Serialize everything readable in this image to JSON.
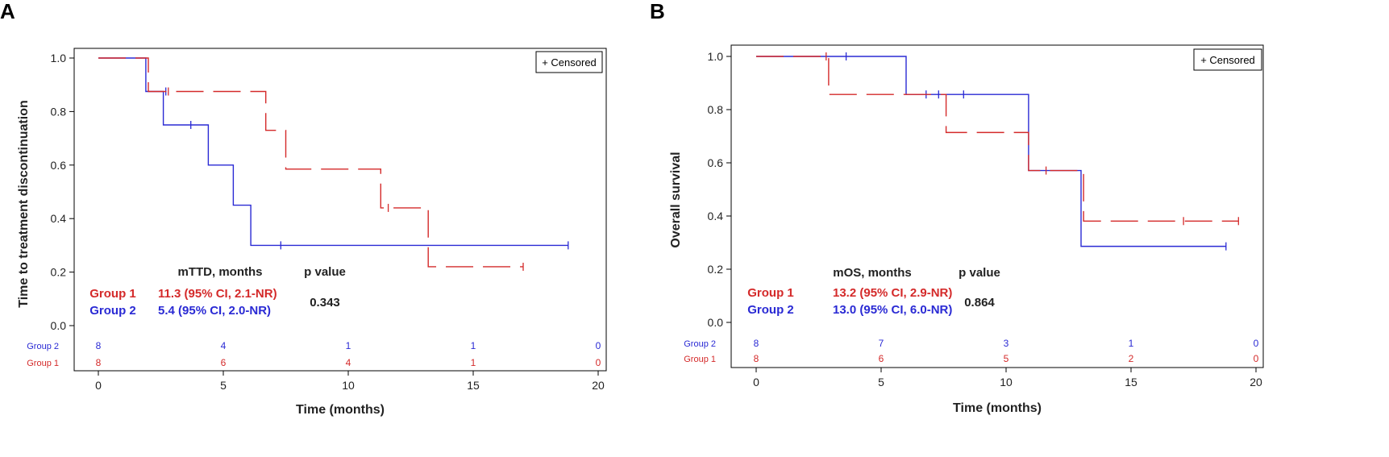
{
  "colors": {
    "group1": "#d42a2a",
    "group2": "#2a2ad4",
    "axis": "#000000",
    "text": "#222222"
  },
  "panels": [
    {
      "letter": "A"
    },
    {
      "letter": "B"
    }
  ],
  "chart_data": [
    {
      "type": "line",
      "subtype": "kaplan-meier",
      "title": "",
      "xlabel": "Time (months)",
      "ylabel": "Time to treatment discontinuation",
      "xlim": [
        0,
        20
      ],
      "ylim": [
        0,
        1.0
      ],
      "x_ticks": [
        0,
        5,
        10,
        15,
        20
      ],
      "y_ticks": [
        0.0,
        0.2,
        0.4,
        0.6,
        0.8,
        1.0
      ],
      "y_tick_labels": [
        "0.0",
        "0.2",
        "0.4",
        "0.6",
        "0.8",
        "1.0"
      ],
      "legend": {
        "text": "+ Censored",
        "position": "top-right"
      },
      "series": [
        {
          "name": "Group 1",
          "dash": "dashed",
          "steps": [
            [
              0,
              1.0
            ],
            [
              2.0,
              0.875
            ],
            [
              6.7,
              0.73
            ],
            [
              7.5,
              0.585
            ],
            [
              11.3,
              0.44
            ],
            [
              13.2,
              0.22
            ],
            [
              17.0,
              0.22
            ]
          ],
          "censored": [
            [
              2.8,
              0.875
            ],
            [
              11.6,
              0.44
            ],
            [
              17.0,
              0.22
            ]
          ]
        },
        {
          "name": "Group 2",
          "dash": "solid",
          "steps": [
            [
              0,
              1.0
            ],
            [
              1.9,
              0.875
            ],
            [
              2.6,
              0.75
            ],
            [
              4.4,
              0.6
            ],
            [
              5.4,
              0.45
            ],
            [
              6.1,
              0.3
            ],
            [
              18.8,
              0.3
            ]
          ],
          "censored": [
            [
              2.7,
              0.875
            ],
            [
              3.7,
              0.75
            ],
            [
              7.3,
              0.3
            ],
            [
              18.8,
              0.3
            ]
          ]
        }
      ],
      "annotation": {
        "header_metric": "mTTD, months",
        "header_p": "p value",
        "rows": [
          {
            "group": "Group 1",
            "value": "11.3 (95% CI, 2.1-NR)"
          },
          {
            "group": "Group 2",
            "value": "5.4 (95% CI, 2.0-NR)"
          }
        ],
        "p_value": "0.343"
      },
      "risk_table": {
        "rows": [
          {
            "label": "Group 2",
            "counts": [
              "8",
              "4",
              "1",
              "1",
              "0"
            ]
          },
          {
            "label": "Group 1",
            "counts": [
              "8",
              "6",
              "4",
              "1",
              "0"
            ]
          }
        ]
      }
    },
    {
      "type": "line",
      "subtype": "kaplan-meier",
      "title": "",
      "xlabel": "Time (months)",
      "ylabel": "Overall survival",
      "xlim": [
        0,
        20
      ],
      "ylim": [
        0,
        1.0
      ],
      "x_ticks": [
        0,
        5,
        10,
        15,
        20
      ],
      "y_ticks": [
        0.0,
        0.2,
        0.4,
        0.6,
        0.8,
        1.0
      ],
      "y_tick_labels": [
        "0.0",
        "0.2",
        "0.4",
        "0.6",
        "0.8",
        "1.0"
      ],
      "legend": {
        "text": "+ Censored",
        "position": "top-right"
      },
      "series": [
        {
          "name": "Group 1",
          "dash": "dashed",
          "steps": [
            [
              0,
              1.0
            ],
            [
              2.9,
              0.857
            ],
            [
              7.6,
              0.714
            ],
            [
              10.9,
              0.571
            ],
            [
              13.1,
              0.381
            ],
            [
              19.3,
              0.381
            ]
          ],
          "censored": [
            [
              2.8,
              1.0
            ],
            [
              11.6,
              0.571
            ],
            [
              17.1,
              0.381
            ],
            [
              19.3,
              0.381
            ]
          ]
        },
        {
          "name": "Group 2",
          "dash": "solid",
          "steps": [
            [
              0,
              1.0
            ],
            [
              6.0,
              0.857
            ],
            [
              10.9,
              0.571
            ],
            [
              13.0,
              0.286
            ],
            [
              18.8,
              0.286
            ]
          ],
          "censored": [
            [
              3.6,
              1.0
            ],
            [
              6.8,
              0.857
            ],
            [
              7.3,
              0.857
            ],
            [
              8.3,
              0.857
            ],
            [
              18.8,
              0.286
            ]
          ]
        }
      ],
      "annotation": {
        "header_metric": "mOS, months",
        "header_p": "p value",
        "rows": [
          {
            "group": "Group 1",
            "value": "13.2 (95% CI, 2.9-NR)"
          },
          {
            "group": "Group 2",
            "value": "13.0 (95% CI, 6.0-NR)"
          }
        ],
        "p_value": "0.864"
      },
      "risk_table": {
        "rows": [
          {
            "label": "Group 2",
            "counts": [
              "8",
              "7",
              "3",
              "1",
              "0"
            ]
          },
          {
            "label": "Group 1",
            "counts": [
              "8",
              "6",
              "5",
              "2",
              "0"
            ]
          }
        ]
      }
    }
  ]
}
